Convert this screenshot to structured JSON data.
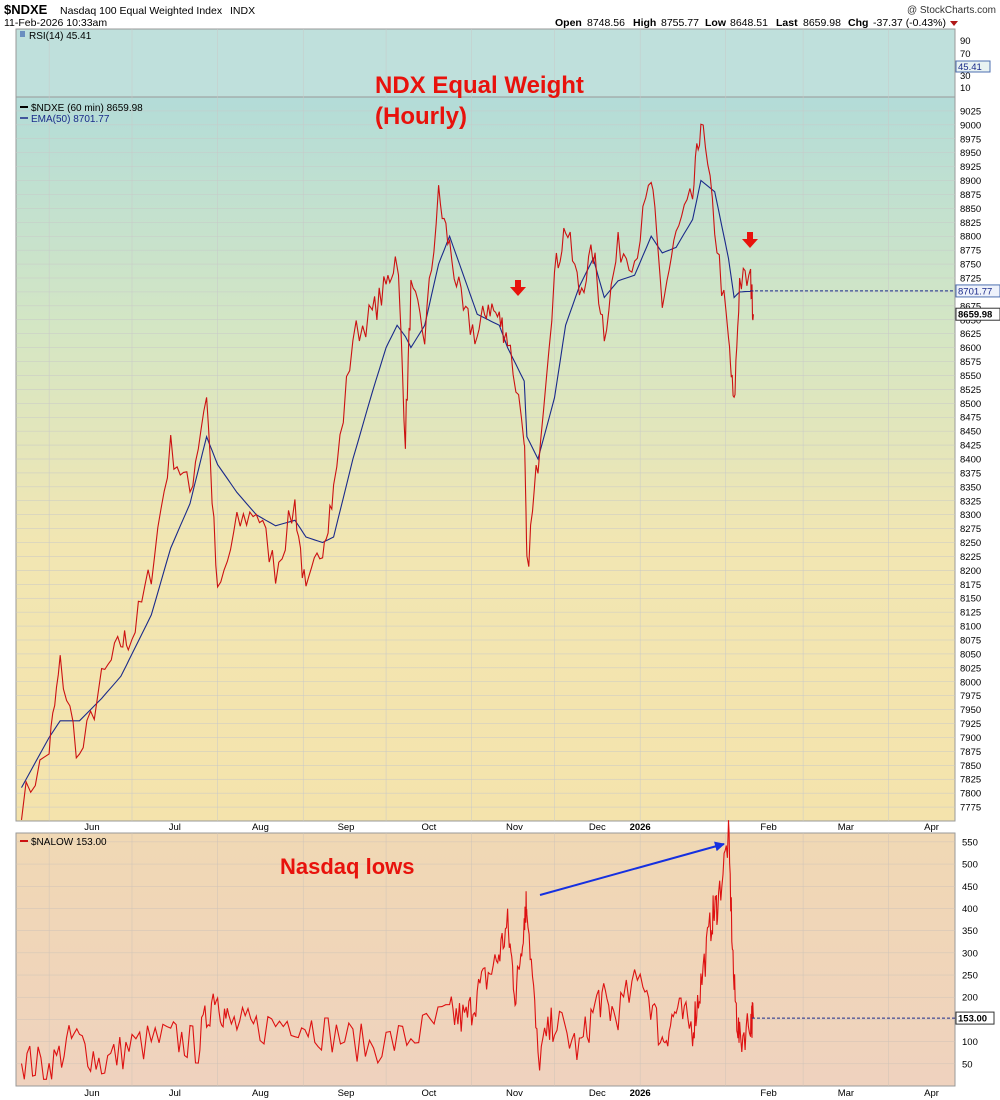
{
  "header": {
    "symbol": "$NDXE",
    "name": "Nasdaq 100 Equal Weighted Index",
    "exchange": "INDX",
    "datetime": "11-Feb-2026 10:33am",
    "watermark": "@ StockCharts.com",
    "open_label": "Open",
    "open": "8748.56",
    "high_label": "High",
    "high": "8755.77",
    "low_label": "Low",
    "low": "8648.51",
    "last_label": "Last",
    "last": "8659.98",
    "chg_label": "Chg",
    "chg": "-37.37 (-0.43%)"
  },
  "rsi_panel": {
    "label": "RSI(14) 45.41",
    "ticks": [
      "90",
      "70",
      "30",
      "10"
    ],
    "tag": "45.41",
    "value": 45.41
  },
  "price_panel": {
    "legend_price": "$NDXE (60 min) 8659.98",
    "legend_ema": "EMA(50) 8701.77",
    "title_line1": "NDX Equal Weight",
    "title_line2": "(Hourly)",
    "ema_tag": "8701.77",
    "last_tag": "8659.98",
    "ema_last": 8701.77,
    "last": 8659.98
  },
  "lows_panel": {
    "legend": "$NALOW 153.00",
    "annotation": "Nasdaq lows",
    "last_tag": "153.00",
    "last": 153.0
  },
  "x_axis_labels": [
    "Jun",
    "Jul",
    "Aug",
    "Sep",
    "Oct",
    "Nov",
    "Dec",
    "2026",
    "Feb",
    "Mar",
    "Apr"
  ],
  "colors": {
    "price_line": "#cc1111",
    "ema_line": "#1a2a8a",
    "annotation_red": "#e8120c",
    "arrow_blue": "#1530e0",
    "grid": "#c9c9c9"
  },
  "chart_data": [
    {
      "type": "line",
      "title": "NDX Equal Weight (Hourly)",
      "x": [
        "2025-05-22",
        "2025-06-01",
        "2025-06-05",
        "2025-06-12",
        "2025-06-20",
        "2025-06-27",
        "2025-07-01",
        "2025-07-08",
        "2025-07-15",
        "2025-07-22",
        "2025-07-28",
        "2025-08-01",
        "2025-08-08",
        "2025-08-15",
        "2025-08-22",
        "2025-08-29",
        "2025-09-02",
        "2025-09-08",
        "2025-09-12",
        "2025-09-19",
        "2025-09-26",
        "2025-10-01",
        "2025-10-05",
        "2025-10-08",
        "2025-10-10",
        "2025-10-15",
        "2025-10-20",
        "2025-10-24",
        "2025-10-29",
        "2025-11-03",
        "2025-11-07",
        "2025-11-11",
        "2025-11-14",
        "2025-11-20",
        "2025-11-21",
        "2025-11-25",
        "2025-12-01",
        "2025-12-05",
        "2025-12-10",
        "2025-12-15",
        "2025-12-19",
        "2025-12-24",
        "2025-12-30",
        "2026-01-05",
        "2026-01-09",
        "2026-01-14",
        "2026-01-20",
        "2026-01-23",
        "2026-01-28",
        "2026-02-02",
        "2026-02-04",
        "2026-02-06",
        "2026-02-10",
        "2026-02-11"
      ],
      "series": [
        {
          "name": "$NDXE (60 min)",
          "values": [
            7780,
            7880,
            8030,
            7860,
            8000,
            8070,
            8080,
            8200,
            8420,
            8340,
            8520,
            8150,
            8280,
            8310,
            8200,
            8320,
            8150,
            8250,
            8340,
            8620,
            8660,
            8710,
            8770,
            8440,
            8700,
            8620,
            8870,
            8780,
            8660,
            8620,
            8680,
            8650,
            8620,
            8450,
            8200,
            8400,
            8730,
            8820,
            8700,
            8770,
            8630,
            8780,
            8760,
            8900,
            8680,
            8800,
            8870,
            9010,
            8820,
            8610,
            8490,
            8720,
            8720,
            8659.98
          ]
        },
        {
          "name": "EMA(50)",
          "values": [
            7810,
            7900,
            7930,
            7930,
            7970,
            8010,
            8050,
            8120,
            8240,
            8320,
            8440,
            8390,
            8340,
            8300,
            8280,
            8290,
            8260,
            8250,
            8260,
            8400,
            8520,
            8600,
            8640,
            8620,
            8600,
            8640,
            8750,
            8800,
            8730,
            8660,
            8650,
            8640,
            8600,
            8540,
            8440,
            8400,
            8510,
            8640,
            8710,
            8760,
            8690,
            8720,
            8730,
            8800,
            8770,
            8780,
            8830,
            8900,
            8880,
            8760,
            8690,
            8700,
            8701,
            8701.77
          ]
        }
      ],
      "ylim": [
        7750,
        9050
      ],
      "xlim": [
        "2025-05-20",
        "2026-04-25"
      ],
      "grid": true
    },
    {
      "type": "line",
      "title": "Nasdaq lows",
      "x": [
        "2025-05-22",
        "2025-06-01",
        "2025-06-10",
        "2025-06-20",
        "2025-07-01",
        "2025-07-15",
        "2025-07-25",
        "2025-07-31",
        "2025-08-05",
        "2025-08-15",
        "2025-08-29",
        "2025-09-10",
        "2025-09-25",
        "2025-10-10",
        "2025-10-24",
        "2025-10-30",
        "2025-11-04",
        "2025-11-10",
        "2025-11-14",
        "2025-11-17",
        "2025-11-20",
        "2025-11-21",
        "2025-11-25",
        "2025-12-01",
        "2025-12-10",
        "2025-12-17",
        "2025-12-23",
        "2026-01-02",
        "2026-01-09",
        "2026-01-14",
        "2026-01-20",
        "2026-01-23",
        "2026-01-27",
        "2026-01-29",
        "2026-02-02",
        "2026-02-04",
        "2026-02-06",
        "2026-02-10",
        "2026-02-11"
      ],
      "series": [
        {
          "name": "$NALOW",
          "values": [
            60,
            40,
            110,
            50,
            90,
            110,
            90,
            215,
            140,
            130,
            150,
            120,
            90,
            110,
            160,
            150,
            220,
            280,
            360,
            200,
            380,
            420,
            60,
            150,
            80,
            200,
            160,
            250,
            100,
            170,
            130,
            230,
            380,
            410,
            560,
            220,
            100,
            150,
            153
          ]
        }
      ],
      "ylim": [
        0,
        570
      ],
      "xlim": [
        "2025-05-20",
        "2026-04-25"
      ],
      "grid": true
    }
  ]
}
